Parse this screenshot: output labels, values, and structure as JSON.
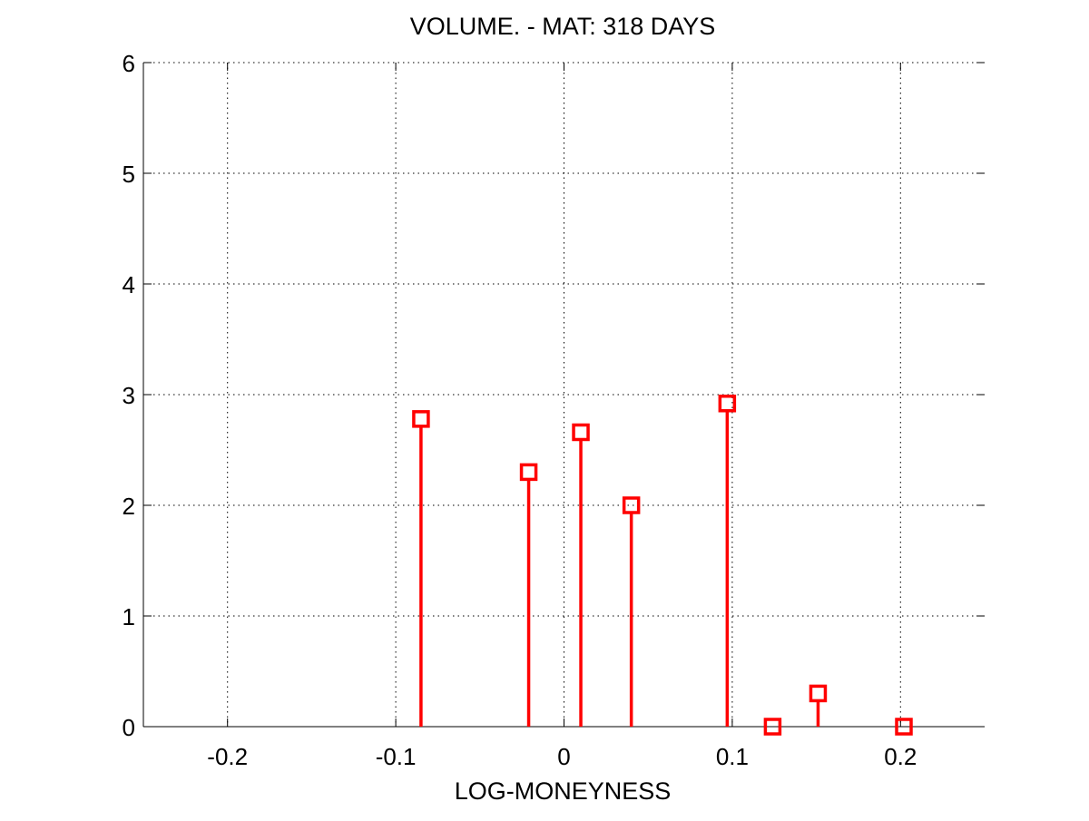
{
  "chart_data": {
    "type": "stem",
    "title": "VOLUME. - MAT: 318 DAYS",
    "xlabel": "LOG-MONEYNESS",
    "ylabel": "",
    "xlim": [
      -0.25,
      0.25
    ],
    "ylim": [
      0,
      6
    ],
    "xticks": [
      -0.2,
      -0.1,
      0,
      0.1,
      0.2
    ],
    "xtick_labels": [
      "-0.2",
      "-0.1",
      "0",
      "0.1",
      "0.2"
    ],
    "yticks": [
      0,
      1,
      2,
      3,
      4,
      5,
      6
    ],
    "ytick_labels": [
      "0",
      "1",
      "2",
      "3",
      "4",
      "5",
      "6"
    ],
    "grid": true,
    "marker": "square",
    "color": "#ff0000",
    "points": [
      {
        "x": -0.085,
        "y": 2.78
      },
      {
        "x": -0.021,
        "y": 2.3
      },
      {
        "x": 0.01,
        "y": 2.66
      },
      {
        "x": 0.04,
        "y": 2.0
      },
      {
        "x": 0.097,
        "y": 2.92
      },
      {
        "x": 0.124,
        "y": 0.0
      },
      {
        "x": 0.151,
        "y": 0.3
      },
      {
        "x": 0.202,
        "y": 0.0
      }
    ]
  }
}
